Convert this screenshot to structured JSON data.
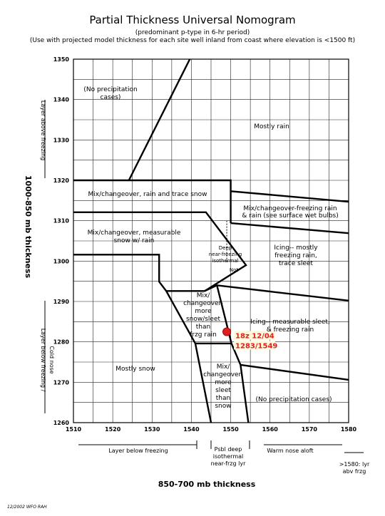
{
  "chart_data": {
    "type": "nomogram",
    "title": "Partial Thickness Universal Nomogram",
    "subtitle": [
      "(predominant p-type in 6-hr period)",
      "(Use with projected model thickness for each site well inland from coast where elevation is <1500 ft)"
    ],
    "xlabel": "850-700 mb thickness",
    "ylabel": "1000-850 mb thickness",
    "xlim": [
      1510,
      1580
    ],
    "ylim": [
      1260,
      1350
    ],
    "xticks": [
      1510,
      1520,
      1530,
      1540,
      1550,
      1560,
      1570,
      1580
    ],
    "yticks": [
      1260,
      1270,
      1280,
      1290,
      1300,
      1310,
      1320,
      1330,
      1340,
      1350
    ],
    "x_minor_ticks": [
      1515,
      1525,
      1535,
      1545,
      1555,
      1565,
      1575
    ],
    "y_minor_ticks": [
      1265,
      1275,
      1285,
      1295,
      1305,
      1315,
      1325,
      1335,
      1345
    ],
    "grid": true,
    "color": "#000000",
    "series": [
      {
        "x": [
          1524.1,
          1539.6
        ],
        "values": [
          1320,
          1350
        ]
      },
      {
        "x": [
          1510,
          1550,
          1550
        ],
        "values": [
          1320,
          1320,
          1309.4
        ]
      },
      {
        "x": [
          1550,
          1580
        ],
        "values": [
          1317.3,
          1314.7
        ]
      },
      {
        "x": [
          1550,
          1580
        ],
        "values": [
          1309.4,
          1306.9
        ]
      },
      {
        "x": [
          1510,
          1543.7,
          1553.9,
          1543.4,
          1533.6
        ],
        "values": [
          1312.1,
          1312.1,
          1299,
          1292.6,
          1292.6
        ]
      },
      {
        "x": [
          1510,
          1531.8,
          1531.8,
          1533.6,
          1541,
          1545
        ],
        "values": [
          1301.6,
          1301.6,
          1294.9,
          1292.6,
          1279.6,
          1260
        ]
      },
      {
        "x": [
          1543.4,
          1546.5,
          1580
        ],
        "values": [
          1292.6,
          1294,
          1290.2
        ]
      },
      {
        "x": [
          1546.5,
          1550.2,
          1552.5,
          1554.5
        ],
        "values": [
          1294,
          1279.6,
          1274.3,
          1260
        ]
      },
      {
        "x": [
          1541,
          1550.2
        ],
        "values": [
          1279.6,
          1279.6
        ]
      },
      {
        "x": [
          1552.5,
          1580
        ],
        "values": [
          1274.3,
          1270.6
        ]
      }
    ],
    "point": {
      "color": "#e02020",
      "x": 1549,
      "values": [
        1282.5
      ],
      "value_labels": [
        "18z 12/04",
        "1283/1549"
      ]
    },
    "annotations": [
      [
        "(No precipitation",
        "cases)"
      ],
      [
        "Mostly rain"
      ],
      [
        "Mix/changeover, rain and trace snow"
      ],
      [
        "Mix/changeover-freezing rain",
        "& rain (see surface wet bulbs)"
      ],
      [
        "Mix/changeover, measurable",
        "snow w/ rain"
      ],
      [
        "Deep",
        "near-freezing",
        "isothermal"
      ],
      [
        "Not"
      ],
      [
        "Icing-- mostly",
        "freezing rain,",
        "trace sleet"
      ],
      [
        "Mix/",
        "changeover-",
        "more",
        "snow/sleet",
        "than",
        "frzg rain"
      ],
      [
        "Icing-- measurable sleet,",
        "& freezing rain"
      ],
      [
        "Mostly snow"
      ],
      [
        "Mix/",
        "changeover-",
        "more",
        "sleet",
        "than",
        "snow"
      ],
      [
        "(No precipitation cases)"
      ],
      [
        "Layer above freezing"
      ],
      [
        "Layer below freezing /",
        "Cold nose"
      ],
      [
        "Layer below freezing"
      ],
      [
        "Psbl deep",
        "isothermal",
        "near-frzg lyr"
      ],
      [
        "Warm nose aloft"
      ],
      [
        ">1580: lyr",
        "abv frzg"
      ],
      [
        "12/2002 WFO RAH"
      ]
    ]
  }
}
